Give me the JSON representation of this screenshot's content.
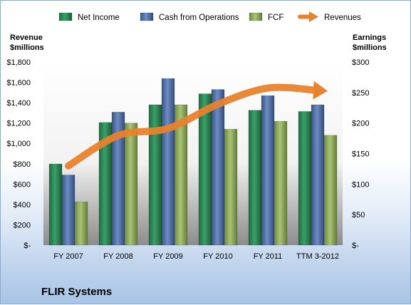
{
  "colors": {
    "net_income": "#2e8b57",
    "cash_from_operations": "#4f6fa8",
    "fcf": "#8fae5a",
    "revenues": "#e8822c"
  },
  "company_name": "FLIR Systems",
  "chart_data": {
    "type": "bar",
    "categories": [
      "FY 2007",
      "FY 2008",
      "FY 2009",
      "FY 2010",
      "FY 2011",
      "TTM 3-2012"
    ],
    "left_axis": {
      "title_line1": "Revenue",
      "title_line2": "$millions",
      "ylim": [
        0,
        1800
      ],
      "ticks": [
        {
          "value": 0,
          "label": "$-"
        },
        {
          "value": 200,
          "label": "$200"
        },
        {
          "value": 400,
          "label": "$400"
        },
        {
          "value": 600,
          "label": "$600"
        },
        {
          "value": 800,
          "label": "$800"
        },
        {
          "value": 1000,
          "label": "$1,000"
        },
        {
          "value": 1200,
          "label": "$1,200"
        },
        {
          "value": 1400,
          "label": "$1,400"
        },
        {
          "value": 1600,
          "label": "$1,600"
        },
        {
          "value": 1800,
          "label": "$1,800"
        }
      ]
    },
    "right_axis": {
      "title_line1": "Earnings",
      "title_line2": "$millions",
      "ylim": [
        0,
        300
      ],
      "ticks": [
        {
          "value": 0,
          "label": "$-"
        },
        {
          "value": 50,
          "label": "$50"
        },
        {
          "value": 100,
          "label": "$100"
        },
        {
          "value": 150,
          "label": "$150"
        },
        {
          "value": 200,
          "label": "$200"
        },
        {
          "value": 250,
          "label": "$250"
        },
        {
          "value": 300,
          "label": "$300"
        }
      ]
    },
    "series": [
      {
        "name": "Net Income",
        "type": "bar",
        "axis": "right",
        "values": [
          133,
          201,
          230,
          248,
          221,
          219
        ]
      },
      {
        "name": "Cash from Operations",
        "type": "bar",
        "axis": "right",
        "values": [
          115,
          218,
          273,
          255,
          245,
          230
        ]
      },
      {
        "name": "FCF",
        "type": "bar",
        "axis": "right",
        "values": [
          71,
          200,
          230,
          190,
          203,
          180
        ]
      },
      {
        "name": "Revenues",
        "type": "arrow-line",
        "axis": "left",
        "values": [
          779,
          1077,
          1147,
          1385,
          1544,
          1520
        ]
      }
    ],
    "legend_position": "top"
  }
}
